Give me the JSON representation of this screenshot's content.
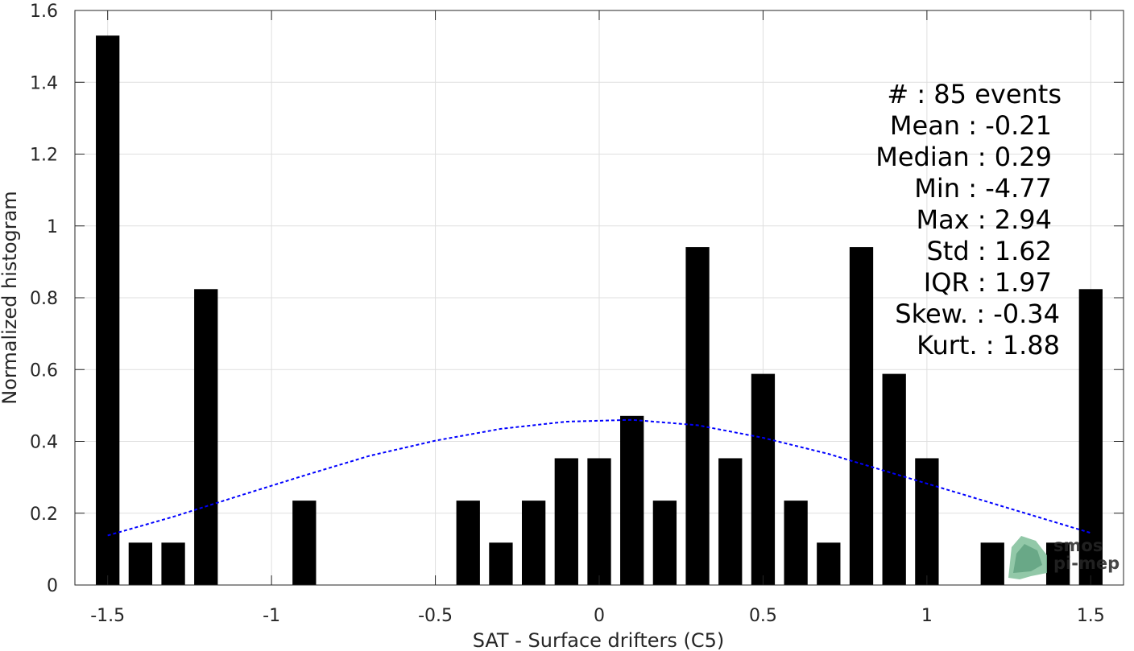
{
  "chart_data": {
    "type": "bar",
    "xlabel": "SAT - Surface drifters (C5)",
    "ylabel": "Normalized histogram",
    "xlim": [
      -1.6,
      1.6
    ],
    "ylim": [
      0,
      1.6
    ],
    "xticks": [
      -1.5,
      -1,
      -0.5,
      0,
      0.5,
      1,
      1.5
    ],
    "xtick_labels": [
      "-1.5",
      "-1",
      "-0.5",
      "0",
      "0.5",
      "1",
      "1.5"
    ],
    "yticks": [
      0,
      0.2,
      0.4,
      0.6,
      0.8,
      1,
      1.2,
      1.4,
      1.6
    ],
    "ytick_labels": [
      "0",
      "0.2",
      "0.4",
      "0.6",
      "0.8",
      "1",
      "1.2",
      "1.4",
      "1.6"
    ],
    "grid": true,
    "bar_color": "#000000",
    "bins": [
      -1.5,
      -1.4,
      -1.3,
      -1.2,
      -1.1,
      -1.0,
      -0.9,
      -0.8,
      -0.7,
      -0.6,
      -0.5,
      -0.4,
      -0.3,
      -0.2,
      -0.1,
      0.0,
      0.1,
      0.2,
      0.3,
      0.4,
      0.5,
      0.6,
      0.7,
      0.8,
      0.9,
      1.0,
      1.1,
      1.2,
      1.3,
      1.4,
      1.5
    ],
    "values": [
      1.53,
      0.118,
      0.118,
      0.824,
      0,
      0,
      0.235,
      0,
      0,
      0,
      0,
      0.235,
      0.118,
      0.235,
      0.353,
      0.353,
      0.471,
      0.235,
      0.941,
      0.353,
      0.588,
      0.235,
      0.118,
      0.941,
      0.588,
      0.353,
      0,
      0.118,
      0,
      0.118,
      0.824
    ],
    "fit_curve": {
      "style": "dashed",
      "color": "#0000ff",
      "x": [
        -1.5,
        -1.3,
        -1.1,
        -0.9,
        -0.7,
        -0.5,
        -0.3,
        -0.1,
        0.1,
        0.3,
        0.5,
        0.7,
        0.9,
        1.1,
        1.3,
        1.5
      ],
      "y": [
        0.138,
        0.19,
        0.248,
        0.305,
        0.36,
        0.402,
        0.435,
        0.455,
        0.46,
        0.445,
        0.41,
        0.365,
        0.31,
        0.255,
        0.2,
        0.145
      ]
    },
    "annotations": [
      "#  : 85 events",
      "Mean : -0.21",
      "Median : 0.29",
      "Min : -4.77",
      "Max : 2.94",
      "Std : 1.62",
      "IQR : 1.97",
      "Skew. : -0.34",
      "Kurt. : 1.88"
    ]
  },
  "logo": {
    "line1": "smos",
    "line2": "pi-mep",
    "color": "#5b9a78"
  }
}
